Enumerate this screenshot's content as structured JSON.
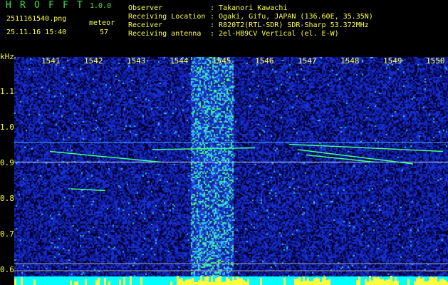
{
  "header": {
    "title_letters": [
      "H",
      "R",
      "O",
      "F",
      "F",
      "T"
    ],
    "version": "1.0.0",
    "filename": "2511161540.png",
    "datetime": "25.11.16 15:40",
    "meteor_label": "meteor",
    "meteor_count": "57",
    "info": [
      {
        "label": "Observer",
        "value": ": Takanori Kawachi"
      },
      {
        "label": "Receiving Location",
        "value": ": Ogaki, Gifu, JAPAN (136.60E, 35.35N)"
      },
      {
        "label": "Receiver",
        "value": ": R820T2(RTL-SDR) SDR-Sharp 53.372MHz"
      },
      {
        "label": "Receiving antenna",
        "value": ": 2el-HB9CV Vertical (el. E-W)"
      }
    ]
  },
  "colors": {
    "text": "#ffff40",
    "title": "#40e040",
    "noise": "#1020c0",
    "trace": "#40ff80",
    "baseline_fill": "#00ffff"
  },
  "chart_data": {
    "type": "heatmap",
    "xlabel": "kHz",
    "x_ticks": [
      "1541",
      "1542",
      "1543",
      "1544",
      "1545",
      "1546",
      "1547",
      "1548",
      "1549",
      "1550"
    ],
    "y_ticks": [
      "1.1",
      "1.0",
      "0.9",
      "0.8",
      "0.7",
      "0.6"
    ],
    "xlim": [
      1540.2,
      1550.3
    ],
    "ylim": [
      0.56,
      1.2
    ],
    "broadband_noise_band_khz": [
      1544.3,
      1545.3
    ],
    "carrier_lines_y": [
      0.905,
      0.96
    ],
    "meteor_traces": [
      {
        "x": [
          1541.0,
          1543.6
        ],
        "y": [
          0.935,
          0.905
        ]
      },
      {
        "x": [
          1543.4,
          1545.8
        ],
        "y": [
          0.94,
          0.945
        ]
      },
      {
        "x": [
          1546.6,
          1550.2
        ],
        "y": [
          0.955,
          0.935
        ]
      },
      {
        "x": [
          1546.8,
          1549.5
        ],
        "y": [
          0.94,
          0.9
        ]
      },
      {
        "x": [
          1547.0,
          1548.6
        ],
        "y": [
          0.925,
          0.905
        ]
      },
      {
        "x": [
          1541.5,
          1542.3
        ],
        "y": [
          0.83,
          0.825
        ]
      }
    ]
  }
}
